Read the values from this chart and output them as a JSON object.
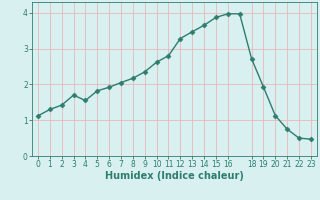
{
  "x": [
    0,
    1,
    2,
    3,
    4,
    5,
    6,
    7,
    8,
    9,
    10,
    11,
    12,
    13,
    14,
    15,
    16,
    17,
    18,
    19,
    20,
    21,
    22,
    23
  ],
  "y": [
    1.12,
    1.3,
    1.42,
    1.7,
    1.55,
    1.82,
    1.92,
    2.05,
    2.17,
    2.35,
    2.62,
    2.8,
    3.28,
    3.47,
    3.65,
    3.87,
    3.97,
    3.97,
    2.72,
    1.93,
    1.13,
    0.75,
    0.5,
    0.47
  ],
  "line_color": "#2e7d6e",
  "marker": "D",
  "markersize": 2.5,
  "linewidth": 1.0,
  "background_color": "#d9f0f0",
  "grid_color": "#e8b8b8",
  "xlabel": "Humidex (Indice chaleur)",
  "ylabel": "",
  "title": "",
  "xlim": [
    -0.5,
    23.5
  ],
  "ylim": [
    0,
    4.3
  ],
  "yticks": [
    0,
    1,
    2,
    3,
    4
  ],
  "xticks": [
    0,
    1,
    2,
    3,
    4,
    5,
    6,
    7,
    8,
    9,
    10,
    11,
    12,
    13,
    14,
    15,
    16,
    18,
    19,
    20,
    21,
    22,
    23
  ],
  "xtick_labels": [
    "0",
    "1",
    "2",
    "3",
    "4",
    "5",
    "6",
    "7",
    "8",
    "9",
    "10",
    "11",
    "12",
    "13",
    "14",
    "15",
    "16",
    "18",
    "19",
    "20",
    "21",
    "22",
    "23"
  ],
  "tick_color": "#2e7d6e",
  "axis_color": "#2e7d6e",
  "label_fontsize": 7,
  "tick_fontsize": 5.5
}
